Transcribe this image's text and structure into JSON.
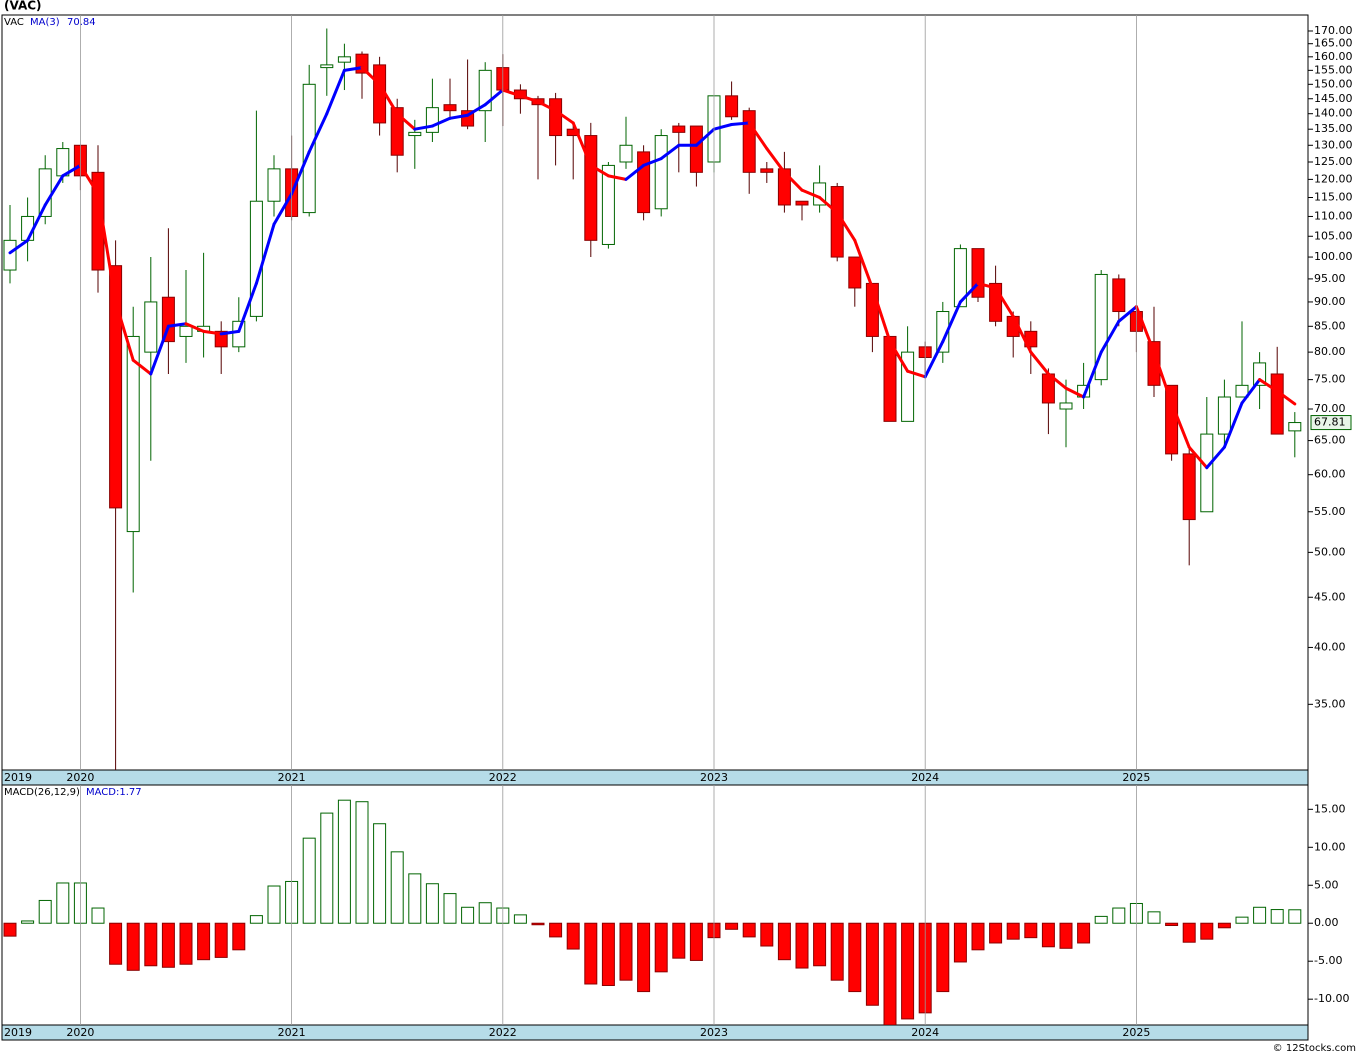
{
  "chart_data": {
    "type": "candlestick",
    "title": "(VAC)",
    "symbol": "VAC",
    "symbol_color": "#006400",
    "categories": [
      "2019",
      null,
      null,
      null,
      "2020",
      null,
      null,
      null,
      null,
      null,
      null,
      null,
      null,
      null,
      null,
      null,
      "2021",
      null,
      null,
      null,
      null,
      null,
      null,
      null,
      null,
      null,
      null,
      null,
      "2022",
      null,
      null,
      null,
      null,
      null,
      null,
      null,
      null,
      null,
      null,
      null,
      "2023",
      null,
      null,
      null,
      null,
      null,
      null,
      null,
      null,
      null,
      null,
      null,
      "2024",
      null,
      null,
      null,
      null,
      null,
      null,
      null,
      null,
      null,
      null,
      null,
      "2025",
      null,
      null,
      null,
      null,
      null,
      null,
      null,
      null,
      null
    ],
    "open": [
      97,
      104,
      110,
      121,
      130,
      122,
      98,
      52.5,
      80,
      91,
      83,
      84,
      84,
      81,
      87,
      114,
      123,
      111,
      156,
      158,
      161,
      157,
      142,
      133,
      134,
      143,
      141,
      141,
      156,
      148,
      145,
      145,
      135,
      133,
      103,
      125,
      128,
      112,
      136,
      136,
      125,
      146,
      141,
      123,
      123,
      114,
      113,
      118,
      100,
      94,
      83,
      68,
      81,
      80,
      89,
      102,
      94,
      87,
      84,
      76,
      70,
      72,
      75,
      95,
      88,
      82,
      74,
      63,
      55,
      66,
      72,
      74,
      76,
      66.5
    ],
    "high": [
      113,
      115,
      127,
      131,
      130,
      130,
      104,
      89,
      100,
      107,
      97,
      101,
      86,
      91,
      141,
      127,
      133,
      157,
      171,
      165,
      162,
      160,
      145,
      138,
      152,
      152,
      159,
      158,
      161,
      150,
      146,
      147,
      137,
      137,
      125,
      139,
      130,
      135,
      137,
      136,
      146,
      151,
      142,
      125,
      128,
      114,
      124,
      119,
      100,
      94,
      83,
      85,
      82,
      90,
      103,
      102,
      98,
      88,
      86,
      77,
      75,
      78,
      97,
      96,
      89,
      89,
      74,
      64,
      72,
      75,
      86,
      80,
      81,
      69.5
    ],
    "low": [
      94,
      99,
      108,
      119,
      117,
      92,
      30,
      45.5,
      62,
      76,
      78,
      79,
      76,
      80,
      86,
      110,
      109,
      110,
      146,
      148,
      145,
      133,
      122,
      123,
      131,
      138,
      135,
      131,
      136,
      140,
      120,
      124,
      120,
      100,
      102,
      123,
      109,
      110,
      122,
      118,
      122,
      138,
      116,
      119,
      111,
      109,
      111,
      99,
      89,
      80,
      68,
      68,
      76,
      78,
      89,
      90,
      85,
      79,
      76,
      66,
      64,
      70,
      74,
      85,
      80,
      72,
      62,
      48.5,
      55,
      64,
      72,
      70,
      66,
      62.5
    ],
    "close": [
      104,
      110,
      123,
      129,
      121,
      97,
      55.5,
      83,
      90,
      82,
      85,
      85,
      81,
      86,
      114,
      123,
      110,
      150,
      157,
      160,
      154,
      137,
      127,
      134,
      142,
      141,
      136,
      155,
      148,
      145,
      143,
      133,
      133,
      104,
      124,
      130,
      111,
      133,
      134,
      122,
      146,
      139,
      122,
      122,
      113,
      113,
      119,
      100,
      93,
      83,
      68,
      80,
      79,
      88,
      102,
      91,
      86,
      83,
      81,
      71,
      71,
      74,
      96,
      88,
      84,
      74,
      63,
      54,
      66,
      72,
      74,
      78,
      66,
      67.81
    ],
    "up_color": "#006400",
    "down_color": "#ff0000",
    "ma": {
      "name": "MA(3)",
      "up_color": "#0000ff",
      "down_color": "#ff0000",
      "values": [
        101,
        104,
        113,
        121,
        124,
        116,
        90,
        78.5,
        76,
        85,
        85.5,
        84,
        83.5,
        84,
        94,
        108,
        116,
        128,
        140,
        155,
        156,
        150,
        140,
        135,
        136,
        138.5,
        139.5,
        143,
        148,
        146,
        144,
        141,
        137,
        124,
        121,
        120,
        124,
        126,
        130,
        130,
        135,
        136.5,
        137,
        129,
        122,
        117,
        115,
        111,
        104,
        93,
        82,
        76.5,
        75.5,
        82,
        90,
        94,
        93,
        87,
        80,
        76,
        73.5,
        72,
        80,
        86,
        89,
        80,
        71,
        64,
        61,
        64,
        71,
        75,
        73,
        70.84
      ]
    },
    "log_scale": true,
    "ylim": [
      30,
      176.5
    ],
    "yticks": [
      {
        "value": 35,
        "label": "35.00"
      },
      {
        "value": 40,
        "label": "40.00"
      },
      {
        "value": 45,
        "label": "45.00"
      },
      {
        "value": 50,
        "label": "50.00"
      },
      {
        "value": 55,
        "label": "55.00"
      },
      {
        "value": 60,
        "label": "60.00"
      },
      {
        "value": 65,
        "label": "65.00"
      },
      {
        "value": 70,
        "label": "70.00"
      },
      {
        "value": 75,
        "label": "75.00"
      },
      {
        "value": 80,
        "label": "80.00"
      },
      {
        "value": 85,
        "label": "85.00"
      },
      {
        "value": 90,
        "label": "90.00"
      },
      {
        "value": 95,
        "label": "95.00"
      },
      {
        "value": 100,
        "label": "100.00"
      },
      {
        "value": 105,
        "label": "105.00"
      },
      {
        "value": 110,
        "label": "110.00"
      },
      {
        "value": 115,
        "label": "115.00"
      },
      {
        "value": 120,
        "label": "120.00"
      },
      {
        "value": 125,
        "label": "125.00"
      },
      {
        "value": 130,
        "label": "130.00"
      },
      {
        "value": 135,
        "label": "135.00"
      },
      {
        "value": 140,
        "label": "140.00"
      },
      {
        "value": 145,
        "label": "145.00"
      },
      {
        "value": 150,
        "label": "150.00"
      },
      {
        "value": 155,
        "label": "155.00"
      },
      {
        "value": 160,
        "label": "160.00"
      },
      {
        "value": 165,
        "label": "165.00"
      },
      {
        "value": 170,
        "label": "170.00"
      }
    ],
    "macd": {
      "type": "bar",
      "title": "MACD(26,12,9)",
      "label": "MACD:1.77",
      "up_color": "#006400",
      "down_color": "#ff0000",
      "values": [
        -1.7,
        0.3,
        3.0,
        5.3,
        5.3,
        2.0,
        -5.4,
        -6.2,
        -5.6,
        -5.8,
        -5.4,
        -4.8,
        -4.5,
        -3.5,
        1.0,
        4.9,
        5.5,
        11.2,
        14.5,
        16.2,
        16.0,
        13.1,
        9.4,
        6.5,
        5.2,
        3.9,
        2.1,
        2.7,
        2.0,
        1.1,
        -0.2,
        -1.8,
        -3.4,
        -8.0,
        -8.2,
        -7.5,
        -9.0,
        -6.4,
        -4.6,
        -4.9,
        -1.9,
        -0.8,
        -1.8,
        -3.0,
        -4.8,
        -5.9,
        -5.6,
        -7.5,
        -9.0,
        -10.8,
        -13.4,
        -12.6,
        -11.8,
        -9.0,
        -5.1,
        -3.5,
        -2.6,
        -2.1,
        -1.9,
        -3.1,
        -3.3,
        -2.6,
        0.9,
        2.0,
        2.6,
        1.5,
        -0.3,
        -2.5,
        -2.1,
        -0.6,
        0.8,
        2.1,
        1.8,
        1.77
      ],
      "ylim": [
        -13.4,
        18.2
      ],
      "yticks": [
        {
          "value": 15,
          "label": "15.00"
        },
        {
          "value": 10,
          "label": "10.00"
        },
        {
          "value": 5,
          "label": "5.00"
        },
        {
          "value": 0,
          "label": "0.00"
        },
        {
          "value": -5,
          "label": "-5.00"
        },
        {
          "value": -10,
          "label": "-10.00"
        }
      ]
    }
  },
  "footer": "© 12Stocks.com"
}
